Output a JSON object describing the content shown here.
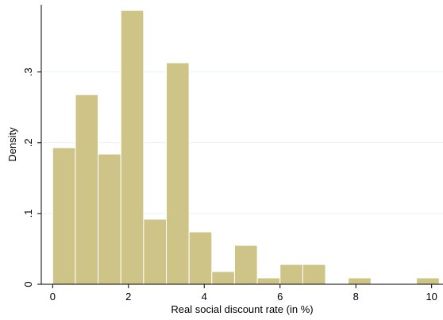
{
  "chart_data": {
    "type": "bar",
    "subtype": "histogram",
    "xlabel": "Real social discount rate (in %)",
    "ylabel": "Density",
    "xlim": [
      -0.3,
      10.3
    ],
    "ylim": [
      0,
      0.395
    ],
    "x_ticks": [
      {
        "value": 0,
        "label": "0"
      },
      {
        "value": 2,
        "label": "2"
      },
      {
        "value": 4,
        "label": "4"
      },
      {
        "value": 6,
        "label": "6"
      },
      {
        "value": 8,
        "label": "8"
      },
      {
        "value": 10,
        "label": "10"
      }
    ],
    "y_ticks": [
      {
        "value": 0,
        "label": "0"
      },
      {
        "value": 0.1,
        "label": ".1"
      },
      {
        "value": 0.2,
        "label": ".2"
      },
      {
        "value": 0.3,
        "label": ".3"
      }
    ],
    "grid": true,
    "bar_color": "#cfc488",
    "bar_edge_color": "#ffffff",
    "bins": [
      {
        "start": 0.0,
        "end": 0.6,
        "value": 0.193
      },
      {
        "start": 0.6,
        "end": 1.2,
        "value": 0.268
      },
      {
        "start": 1.2,
        "end": 1.8,
        "value": 0.184
      },
      {
        "start": 1.8,
        "end": 2.4,
        "value": 0.387
      },
      {
        "start": 2.4,
        "end": 3.0,
        "value": 0.092
      },
      {
        "start": 3.0,
        "end": 3.6,
        "value": 0.313
      },
      {
        "start": 3.6,
        "end": 4.2,
        "value": 0.074
      },
      {
        "start": 4.2,
        "end": 4.8,
        "value": 0.018
      },
      {
        "start": 4.8,
        "end": 5.4,
        "value": 0.055
      },
      {
        "start": 5.4,
        "end": 6.0,
        "value": 0.009
      },
      {
        "start": 6.0,
        "end": 6.6,
        "value": 0.028
      },
      {
        "start": 6.6,
        "end": 7.2,
        "value": 0.028
      },
      {
        "start": 7.2,
        "end": 7.8,
        "value": 0.0
      },
      {
        "start": 7.8,
        "end": 8.4,
        "value": 0.009
      },
      {
        "start": 8.4,
        "end": 9.0,
        "value": 0.0
      },
      {
        "start": 9.0,
        "end": 9.6,
        "value": 0.0
      },
      {
        "start": 9.6,
        "end": 10.2,
        "value": 0.009
      }
    ]
  }
}
